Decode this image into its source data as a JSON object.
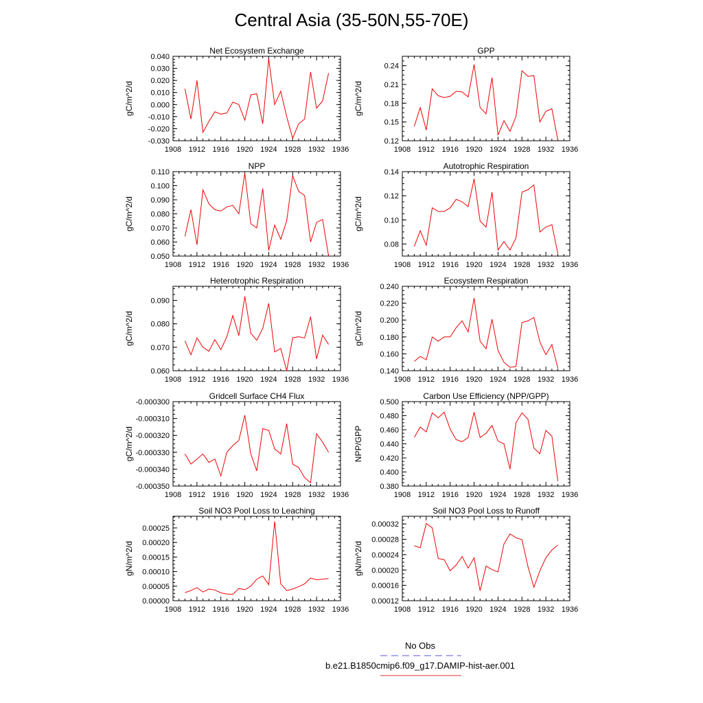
{
  "title": "Central Asia (35-50N,55-70E)",
  "legend": {
    "obs_label": "No Obs",
    "obs_color": "#5555dd",
    "case_label": "b.e21.B1850cmip6.f09_g17.DAMIP-hist-aer.001",
    "case_color": "#dd3333"
  },
  "series_color": "#ee0000",
  "chart_data": [
    {
      "type": "line",
      "title": "Net Ecosystem Exchange",
      "ylabel": "gC/m^2/d",
      "xlim": [
        1908,
        1936
      ],
      "xticks": [
        "1908",
        "1912",
        "1916",
        "1920",
        "1924",
        "1928",
        "1932",
        "1936"
      ],
      "ylim": [
        -0.03,
        0.04
      ],
      "yticks": [
        "-0.030",
        "-0.020",
        "-0.010",
        "0.000",
        "0.010",
        "0.020",
        "0.030",
        "0.040"
      ],
      "x": [
        1910,
        1911,
        1912,
        1913,
        1914,
        1915,
        1916,
        1917,
        1918,
        1919,
        1920,
        1921,
        1922,
        1923,
        1924,
        1925,
        1926,
        1927,
        1928,
        1929,
        1930,
        1931,
        1932,
        1933,
        1934
      ],
      "values": [
        0.013,
        -0.012,
        0.02,
        -0.023,
        -0.014,
        -0.006,
        -0.008,
        -0.007,
        0.002,
        0.0,
        -0.013,
        0.008,
        0.009,
        -0.016,
        0.038,
        0.0,
        0.011,
        -0.01,
        -0.028,
        -0.016,
        -0.012,
        0.027,
        -0.003,
        0.003,
        0.026
      ]
    },
    {
      "type": "line",
      "title": "GPP",
      "ylabel": "gC/m^2/d",
      "xlim": [
        1908,
        1936
      ],
      "xticks": [
        "1908",
        "1912",
        "1916",
        "1920",
        "1924",
        "1928",
        "1932",
        "1936"
      ],
      "ylim": [
        0.12,
        0.255
      ],
      "yticks": [
        "0.12",
        "0.15",
        "0.18",
        "0.21",
        "0.24"
      ],
      "x": [
        1910,
        1911,
        1912,
        1913,
        1914,
        1915,
        1916,
        1917,
        1918,
        1919,
        1920,
        1921,
        1922,
        1923,
        1924,
        1925,
        1926,
        1927,
        1928,
        1929,
        1930,
        1931,
        1932,
        1933,
        1934
      ],
      "values": [
        0.143,
        0.173,
        0.137,
        0.203,
        0.192,
        0.189,
        0.191,
        0.199,
        0.198,
        0.19,
        0.242,
        0.173,
        0.163,
        0.221,
        0.129,
        0.152,
        0.135,
        0.159,
        0.232,
        0.223,
        0.224,
        0.15,
        0.167,
        0.171,
        0.121
      ]
    },
    {
      "type": "line",
      "title": "NPP",
      "ylabel": "gC/m^2/d",
      "xlim": [
        1908,
        1936
      ],
      "xticks": [
        "1908",
        "1912",
        "1916",
        "1920",
        "1924",
        "1928",
        "1932",
        "1936"
      ],
      "ylim": [
        0.05,
        0.11
      ],
      "yticks": [
        "0.050",
        "0.060",
        "0.070",
        "0.080",
        "0.090",
        "0.100",
        "0.110"
      ],
      "x": [
        1910,
        1911,
        1912,
        1913,
        1914,
        1915,
        1916,
        1917,
        1918,
        1919,
        1920,
        1921,
        1922,
        1923,
        1924,
        1925,
        1926,
        1927,
        1928,
        1929,
        1930,
        1931,
        1932,
        1933,
        1934
      ],
      "values": [
        0.064,
        0.083,
        0.058,
        0.097,
        0.087,
        0.083,
        0.082,
        0.085,
        0.086,
        0.08,
        0.109,
        0.073,
        0.07,
        0.098,
        0.054,
        0.072,
        0.062,
        0.075,
        0.107,
        0.096,
        0.093,
        0.06,
        0.074,
        0.076,
        0.05
      ]
    },
    {
      "type": "line",
      "title": "Autotrophic Respiration",
      "ylabel": "gC/m^2/d",
      "xlim": [
        1908,
        1936
      ],
      "xticks": [
        "1908",
        "1912",
        "1916",
        "1920",
        "1924",
        "1928",
        "1932",
        "1936"
      ],
      "ylim": [
        0.07,
        0.14
      ],
      "yticks": [
        "0.08",
        "0.10",
        "0.12",
        "0.14"
      ],
      "x": [
        1910,
        1911,
        1912,
        1913,
        1914,
        1915,
        1916,
        1917,
        1918,
        1919,
        1920,
        1921,
        1922,
        1923,
        1924,
        1925,
        1926,
        1927,
        1928,
        1929,
        1930,
        1931,
        1932,
        1933,
        1934
      ],
      "values": [
        0.078,
        0.091,
        0.079,
        0.11,
        0.107,
        0.107,
        0.11,
        0.117,
        0.115,
        0.111,
        0.134,
        0.099,
        0.094,
        0.123,
        0.075,
        0.082,
        0.075,
        0.085,
        0.123,
        0.125,
        0.129,
        0.09,
        0.094,
        0.096,
        0.072
      ]
    },
    {
      "type": "line",
      "title": "Heterotrophic Respiration",
      "ylabel": "gC/m^2/d",
      "xlim": [
        1908,
        1936
      ],
      "xticks": [
        "1908",
        "1912",
        "1916",
        "1920",
        "1924",
        "1928",
        "1932",
        "1936"
      ],
      "ylim": [
        0.06,
        0.096
      ],
      "yticks": [
        "0.060",
        "0.070",
        "0.080",
        "0.090"
      ],
      "x": [
        1910,
        1911,
        1912,
        1913,
        1914,
        1915,
        1916,
        1917,
        1918,
        1919,
        1920,
        1921,
        1922,
        1923,
        1924,
        1925,
        1926,
        1927,
        1928,
        1929,
        1930,
        1931,
        1932,
        1933,
        1934
      ],
      "values": [
        0.0727,
        0.0668,
        0.074,
        0.07,
        0.0683,
        0.0733,
        0.069,
        0.0745,
        0.0835,
        0.075,
        0.0917,
        0.076,
        0.073,
        0.078,
        0.0887,
        0.068,
        0.0695,
        0.06,
        0.074,
        0.0745,
        0.074,
        0.083,
        0.065,
        0.0752,
        0.0712
      ]
    },
    {
      "type": "line",
      "title": "Ecosystem Respiration",
      "ylabel": "gC/m^2/d",
      "xlim": [
        1908,
        1936
      ],
      "xticks": [
        "1908",
        "1912",
        "1916",
        "1920",
        "1924",
        "1928",
        "1932",
        "1936"
      ],
      "ylim": [
        0.14,
        0.24
      ],
      "yticks": [
        "0.140",
        "0.160",
        "0.180",
        "0.200",
        "0.220",
        "0.240"
      ],
      "x": [
        1910,
        1911,
        1912,
        1913,
        1914,
        1915,
        1916,
        1917,
        1918,
        1919,
        1920,
        1921,
        1922,
        1923,
        1924,
        1925,
        1926,
        1927,
        1928,
        1929,
        1930,
        1931,
        1932,
        1933,
        1934
      ],
      "values": [
        0.151,
        0.157,
        0.153,
        0.18,
        0.175,
        0.18,
        0.18,
        0.191,
        0.199,
        0.186,
        0.226,
        0.175,
        0.166,
        0.201,
        0.164,
        0.15,
        0.144,
        0.145,
        0.197,
        0.199,
        0.203,
        0.174,
        0.159,
        0.171,
        0.143
      ]
    },
    {
      "type": "line",
      "title": "Gridcell Surface CH4 Flux",
      "ylabel": "gC/m^2/d",
      "xlim": [
        1908,
        1936
      ],
      "xticks": [
        "1908",
        "1912",
        "1916",
        "1920",
        "1924",
        "1928",
        "1932",
        "1936"
      ],
      "ylim": [
        -0.00035,
        -0.0003
      ],
      "yticks": [
        "-0.000350",
        "-0.000340",
        "-0.000330",
        "-0.000320",
        "-0.000310",
        "-0.000300"
      ],
      "x": [
        1910,
        1911,
        1912,
        1913,
        1914,
        1915,
        1916,
        1917,
        1918,
        1919,
        1920,
        1921,
        1922,
        1923,
        1924,
        1925,
        1926,
        1927,
        1928,
        1929,
        1930,
        1931,
        1932,
        1933,
        1934
      ],
      "values": [
        -0.000331,
        -0.000337,
        -0.000334,
        -0.000331,
        -0.000336,
        -0.000334,
        -0.000344,
        -0.00033,
        -0.000326,
        -0.000323,
        -0.000308,
        -0.000331,
        -0.000341,
        -0.000316,
        -0.000317,
        -0.000328,
        -0.000331,
        -0.000313,
        -0.000337,
        -0.000339,
        -0.000345,
        -0.000348,
        -0.000319,
        -0.000324,
        -0.00033
      ]
    },
    {
      "type": "line",
      "title": "Carbon Use Efficiency (NPP/GPP)",
      "ylabel": "NPP/GPP",
      "xlim": [
        1908,
        1936
      ],
      "xticks": [
        "1908",
        "1912",
        "1916",
        "1920",
        "1924",
        "1928",
        "1932",
        "1936"
      ],
      "ylim": [
        0.38,
        0.5
      ],
      "yticks": [
        "0.380",
        "0.400",
        "0.420",
        "0.440",
        "0.460",
        "0.480",
        "0.500"
      ],
      "x": [
        1910,
        1911,
        1912,
        1913,
        1914,
        1915,
        1916,
        1917,
        1918,
        1919,
        1920,
        1921,
        1922,
        1923,
        1924,
        1925,
        1926,
        1927,
        1928,
        1929,
        1930,
        1931,
        1932,
        1933,
        1934
      ],
      "values": [
        0.449,
        0.464,
        0.457,
        0.484,
        0.477,
        0.485,
        0.461,
        0.446,
        0.443,
        0.449,
        0.485,
        0.449,
        0.455,
        0.466,
        0.444,
        0.44,
        0.404,
        0.47,
        0.484,
        0.475,
        0.434,
        0.426,
        0.459,
        0.451,
        0.387
      ]
    },
    {
      "type": "line",
      "title": "Soil NO3 Pool Loss to Leaching",
      "ylabel": "gN/m^2/d",
      "xlim": [
        1908,
        1936
      ],
      "xticks": [
        "1908",
        "1912",
        "1916",
        "1920",
        "1924",
        "1928",
        "1932",
        "1936"
      ],
      "ylim": [
        0,
        0.00029
      ],
      "yticks": [
        "0.00000",
        "0.00005",
        "0.00010",
        "0.00015",
        "0.00020",
        "0.00025"
      ],
      "x": [
        1910,
        1911,
        1912,
        1913,
        1914,
        1915,
        1916,
        1917,
        1918,
        1919,
        1920,
        1921,
        1922,
        1923,
        1924,
        1925,
        1926,
        1927,
        1928,
        1929,
        1930,
        1931,
        1932,
        1933,
        1934
      ],
      "values": [
        2.8e-05,
        3.5e-05,
        4.5e-05,
        3e-05,
        4e-05,
        3.7e-05,
        2.7e-05,
        2.3e-05,
        2.2e-05,
        4.2e-05,
        3.8e-05,
        5e-05,
        7.4e-05,
        8.5e-05,
        5.5e-05,
        0.000272,
        5.8e-05,
        3.5e-05,
        4e-05,
        4.8e-05,
        5.8e-05,
        7.8e-05,
        7.2e-05,
        7.4e-05,
        7.6e-05
      ]
    },
    {
      "type": "line",
      "title": "Soil NO3 Pool Loss to Runoff",
      "ylabel": "gN/m^2/d",
      "xlim": [
        1908,
        1936
      ],
      "xticks": [
        "1908",
        "1912",
        "1916",
        "1920",
        "1924",
        "1928",
        "1932",
        "1936"
      ],
      "ylim": [
        0.00012,
        0.00034
      ],
      "yticks": [
        "0.00012",
        "0.00016",
        "0.00020",
        "0.00024",
        "0.00028",
        "0.00032"
      ],
      "x": [
        1910,
        1911,
        1912,
        1913,
        1914,
        1915,
        1916,
        1917,
        1918,
        1919,
        1920,
        1921,
        1922,
        1923,
        1924,
        1925,
        1926,
        1927,
        1928,
        1929,
        1930,
        1931,
        1932,
        1933,
        1934
      ],
      "values": [
        0.000263,
        0.000258,
        0.000321,
        0.00031,
        0.00023,
        0.000227,
        0.000198,
        0.000213,
        0.000235,
        0.000205,
        0.000232,
        0.000146,
        0.00021,
        0.000201,
        0.000195,
        0.000268,
        0.000294,
        0.000284,
        0.000279,
        0.000209,
        0.000155,
        0.000198,
        0.000232,
        0.000252,
        0.000265
      ]
    }
  ]
}
